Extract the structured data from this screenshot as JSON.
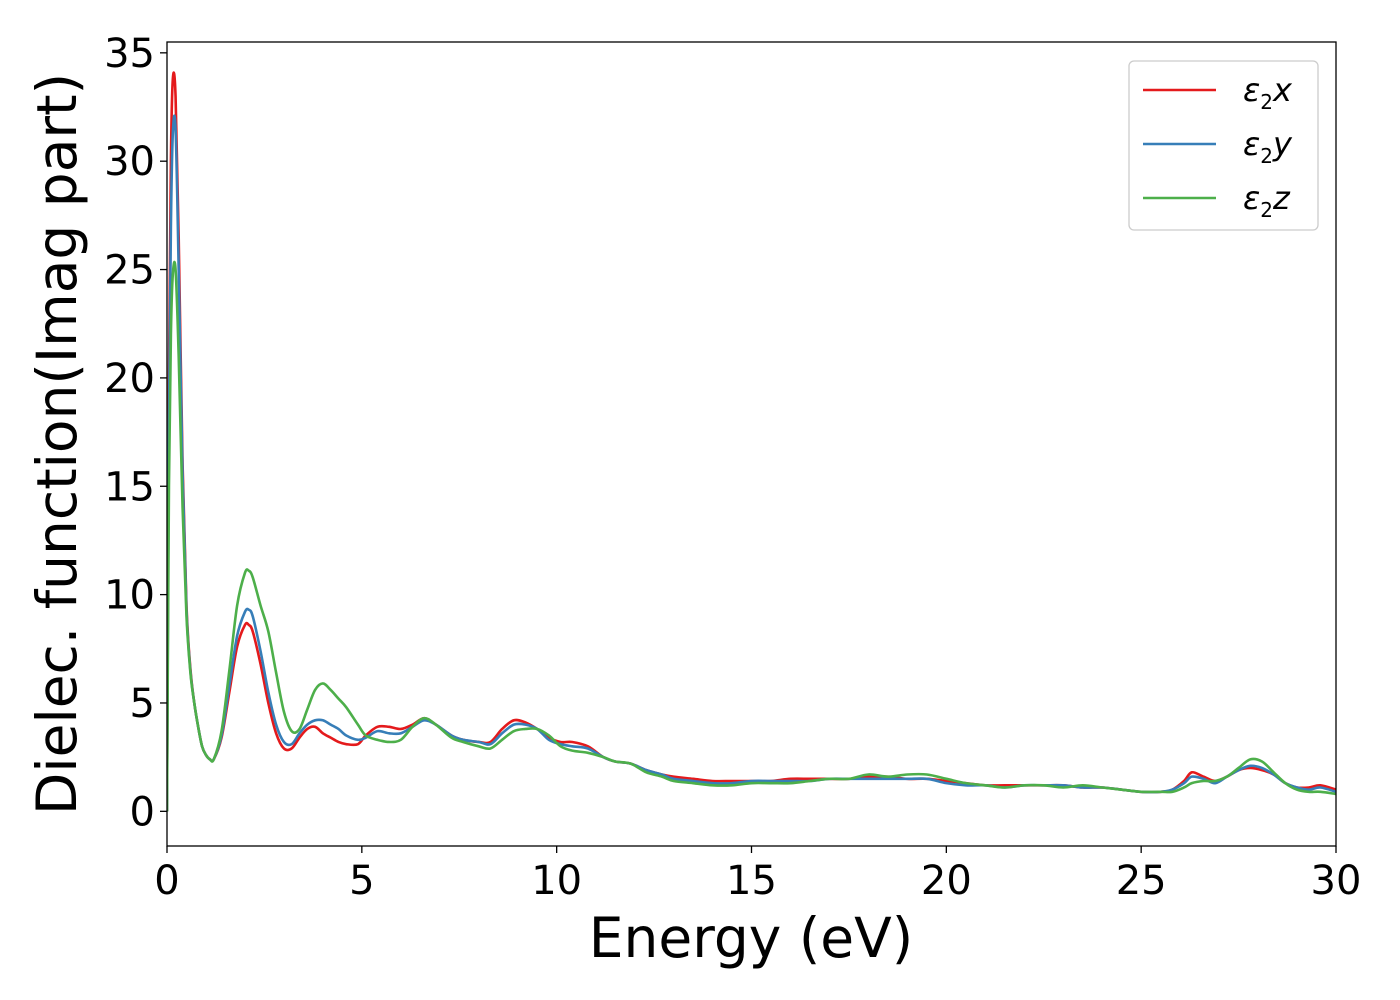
{
  "chart_data": {
    "type": "line",
    "xlabel": "Energy (eV)",
    "ylabel": "Dielec. function(Imag part)",
    "xlim": [
      0,
      30
    ],
    "ylim": [
      -1.6,
      35.5
    ],
    "xticks": [
      0,
      5,
      10,
      15,
      20,
      25,
      30
    ],
    "yticks": [
      0,
      5,
      10,
      15,
      20,
      25,
      30,
      35
    ],
    "grid": false,
    "legend_position": "top-right",
    "series": [
      {
        "name": "ε2x",
        "legend_base": "ε",
        "legend_sub": "2",
        "legend_tail": "x",
        "color": "#e41a1c",
        "x": [
          0,
          0.05,
          0.1,
          0.15,
          0.22,
          0.3,
          0.4,
          0.5,
          0.6,
          0.7,
          0.8,
          0.9,
          1.0,
          1.1,
          1.2,
          1.4,
          1.6,
          1.8,
          2.0,
          2.1,
          2.2,
          2.4,
          2.6,
          2.8,
          3.0,
          3.2,
          3.4,
          3.6,
          3.8,
          4.0,
          4.2,
          4.4,
          4.6,
          4.9,
          5.1,
          5.4,
          5.7,
          6.0,
          6.3,
          6.6,
          6.9,
          7.3,
          7.6,
          8.0,
          8.3,
          8.6,
          8.9,
          9.2,
          9.5,
          9.8,
          10.1,
          10.4,
          10.8,
          11.2,
          11.5,
          11.9,
          12.3,
          12.7,
          13.0,
          13.5,
          14.0,
          14.5,
          15.0,
          15.5,
          16.0,
          16.5,
          17.0,
          17.5,
          18.0,
          18.5,
          19.0,
          19.5,
          20.0,
          20.5,
          21.0,
          21.5,
          22.0,
          22.5,
          23.0,
          23.5,
          24.0,
          24.5,
          25.0,
          25.5,
          25.8,
          26.1,
          26.3,
          26.6,
          26.9,
          27.2,
          27.5,
          27.8,
          28.1,
          28.4,
          28.7,
          29.0,
          29.3,
          29.6,
          30.0
        ],
        "y": [
          0,
          20,
          30,
          33.8,
          33.0,
          26.5,
          16.0,
          9.5,
          6.6,
          5.0,
          3.9,
          3.0,
          2.6,
          2.4,
          2.4,
          3.4,
          5.5,
          7.6,
          8.6,
          8.6,
          8.3,
          6.8,
          5.0,
          3.6,
          2.9,
          2.9,
          3.4,
          3.8,
          3.9,
          3.6,
          3.4,
          3.2,
          3.1,
          3.1,
          3.5,
          3.9,
          3.9,
          3.8,
          4.0,
          4.3,
          4.0,
          3.5,
          3.3,
          3.2,
          3.2,
          3.8,
          4.2,
          4.1,
          3.8,
          3.4,
          3.2,
          3.2,
          3.0,
          2.5,
          2.3,
          2.2,
          1.9,
          1.7,
          1.6,
          1.5,
          1.4,
          1.4,
          1.4,
          1.4,
          1.5,
          1.5,
          1.5,
          1.5,
          1.6,
          1.6,
          1.5,
          1.5,
          1.4,
          1.3,
          1.2,
          1.2,
          1.2,
          1.2,
          1.2,
          1.1,
          1.1,
          1.0,
          0.9,
          0.9,
          1.0,
          1.4,
          1.8,
          1.6,
          1.4,
          1.6,
          1.9,
          2.0,
          1.9,
          1.7,
          1.3,
          1.1,
          1.1,
          1.2,
          1.0
        ]
      },
      {
        "name": "ε2y",
        "legend_base": "ε",
        "legend_sub": "2",
        "legend_tail": "y",
        "color": "#377eb8",
        "x": [
          0,
          0.05,
          0.1,
          0.15,
          0.22,
          0.3,
          0.4,
          0.5,
          0.6,
          0.7,
          0.8,
          0.9,
          1.0,
          1.1,
          1.2,
          1.4,
          1.6,
          1.8,
          2.0,
          2.1,
          2.2,
          2.4,
          2.6,
          2.8,
          3.0,
          3.2,
          3.4,
          3.6,
          3.8,
          4.0,
          4.2,
          4.4,
          4.6,
          4.9,
          5.1,
          5.4,
          5.7,
          6.0,
          6.3,
          6.6,
          6.9,
          7.3,
          7.6,
          8.0,
          8.3,
          8.6,
          8.9,
          9.2,
          9.5,
          9.8,
          10.1,
          10.4,
          10.8,
          11.2,
          11.5,
          11.9,
          12.3,
          12.7,
          13.0,
          13.5,
          14.0,
          14.5,
          15.0,
          15.5,
          16.0,
          16.5,
          17.0,
          17.5,
          18.0,
          18.5,
          19.0,
          19.5,
          20.0,
          20.5,
          21.0,
          21.5,
          22.0,
          22.5,
          23.0,
          23.5,
          24.0,
          24.5,
          25.0,
          25.5,
          25.8,
          26.1,
          26.3,
          26.6,
          26.9,
          27.2,
          27.5,
          27.8,
          28.1,
          28.4,
          28.7,
          29.0,
          29.3,
          29.6,
          30.0
        ],
        "y": [
          0,
          18,
          27,
          31.3,
          31.5,
          25.0,
          15.5,
          9.3,
          6.5,
          5.0,
          3.9,
          3.0,
          2.6,
          2.4,
          2.4,
          3.5,
          5.8,
          8.1,
          9.2,
          9.3,
          9.0,
          7.4,
          5.5,
          4.0,
          3.2,
          3.1,
          3.6,
          4.0,
          4.2,
          4.2,
          4.0,
          3.8,
          3.5,
          3.3,
          3.4,
          3.7,
          3.6,
          3.6,
          3.9,
          4.2,
          4.0,
          3.5,
          3.3,
          3.2,
          3.1,
          3.6,
          4.0,
          4.0,
          3.8,
          3.3,
          3.1,
          3.0,
          2.9,
          2.5,
          2.3,
          2.2,
          1.9,
          1.7,
          1.5,
          1.4,
          1.3,
          1.3,
          1.4,
          1.4,
          1.4,
          1.4,
          1.5,
          1.5,
          1.5,
          1.5,
          1.5,
          1.5,
          1.3,
          1.2,
          1.2,
          1.1,
          1.2,
          1.2,
          1.2,
          1.1,
          1.1,
          1.0,
          0.9,
          0.9,
          1.0,
          1.3,
          1.6,
          1.5,
          1.3,
          1.6,
          1.9,
          2.1,
          2.0,
          1.7,
          1.3,
          1.1,
          1.0,
          1.1,
          0.9
        ]
      },
      {
        "name": "ε2z",
        "legend_base": "ε",
        "legend_sub": "2",
        "legend_tail": "z",
        "color": "#4daf4a",
        "x": [
          0,
          0.05,
          0.1,
          0.15,
          0.22,
          0.3,
          0.4,
          0.5,
          0.6,
          0.7,
          0.8,
          0.9,
          1.0,
          1.1,
          1.2,
          1.4,
          1.6,
          1.8,
          2.0,
          2.1,
          2.2,
          2.4,
          2.6,
          2.8,
          3.0,
          3.2,
          3.4,
          3.6,
          3.8,
          4.0,
          4.2,
          4.4,
          4.6,
          4.9,
          5.1,
          5.4,
          5.7,
          6.0,
          6.3,
          6.6,
          6.9,
          7.3,
          7.6,
          8.0,
          8.3,
          8.6,
          8.9,
          9.2,
          9.5,
          9.8,
          10.1,
          10.4,
          10.8,
          11.2,
          11.5,
          11.9,
          12.3,
          12.7,
          13.0,
          13.5,
          14.0,
          14.5,
          15.0,
          15.5,
          16.0,
          16.5,
          17.0,
          17.5,
          18.0,
          18.5,
          19.0,
          19.5,
          20.0,
          20.5,
          21.0,
          21.5,
          22.0,
          22.5,
          23.0,
          23.5,
          24.0,
          24.5,
          25.0,
          25.5,
          25.8,
          26.1,
          26.3,
          26.6,
          26.9,
          27.2,
          27.5,
          27.8,
          28.1,
          28.4,
          28.7,
          29.0,
          29.3,
          29.6,
          30.0
        ],
        "y": [
          0,
          15,
          22,
          24.8,
          25.0,
          21.0,
          14.0,
          9.0,
          6.4,
          5.0,
          3.9,
          3.0,
          2.6,
          2.4,
          2.4,
          3.7,
          6.5,
          9.5,
          11.0,
          11.1,
          10.8,
          9.5,
          8.3,
          6.4,
          4.6,
          3.7,
          3.8,
          4.7,
          5.6,
          5.9,
          5.6,
          5.2,
          4.8,
          4.0,
          3.5,
          3.3,
          3.2,
          3.3,
          3.9,
          4.3,
          4.0,
          3.4,
          3.2,
          3.0,
          2.9,
          3.3,
          3.7,
          3.8,
          3.8,
          3.5,
          3.0,
          2.8,
          2.7,
          2.5,
          2.3,
          2.2,
          1.8,
          1.6,
          1.4,
          1.3,
          1.2,
          1.2,
          1.3,
          1.3,
          1.3,
          1.4,
          1.5,
          1.5,
          1.7,
          1.6,
          1.7,
          1.7,
          1.5,
          1.3,
          1.2,
          1.1,
          1.2,
          1.2,
          1.1,
          1.2,
          1.1,
          1.0,
          0.9,
          0.9,
          0.9,
          1.1,
          1.3,
          1.4,
          1.4,
          1.6,
          2.0,
          2.4,
          2.3,
          1.8,
          1.3,
          1.0,
          0.9,
          0.9,
          0.8
        ]
      }
    ]
  }
}
